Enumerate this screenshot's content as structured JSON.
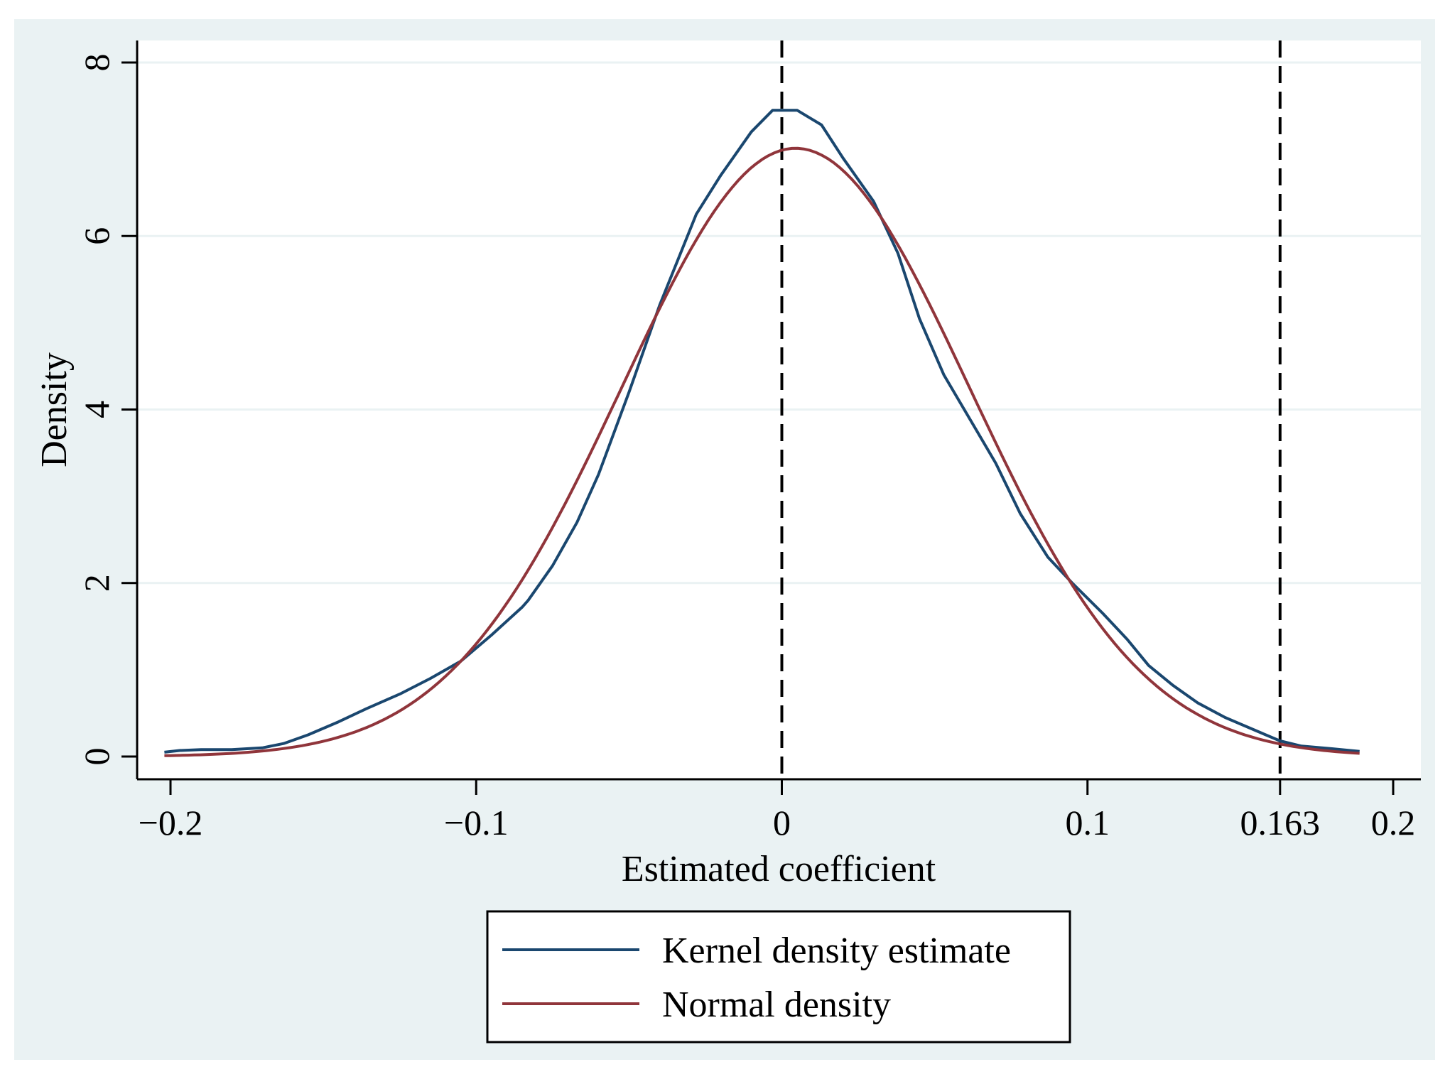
{
  "chart_data": {
    "type": "line",
    "title": "",
    "xlabel": "Estimated coefficient",
    "ylabel": "Density",
    "xlim": [
      -0.2,
      0.2
    ],
    "ylim": [
      0,
      8
    ],
    "grid": true,
    "colors": {
      "outer_background": "#eaf2f3",
      "plot_background": "#ffffff",
      "grid": "#eaf2f3",
      "kernel": "#1a476f",
      "normal": "#90353b",
      "reference": "#000000"
    },
    "x_ticks": [
      {
        "value": -0.2,
        "label": "−0.2"
      },
      {
        "value": -0.1,
        "label": "−0.1"
      },
      {
        "value": 0,
        "label": "0"
      },
      {
        "value": 0.1,
        "label": "0.1"
      },
      {
        "value": 0.163,
        "label": "0.163"
      },
      {
        "value": 0.2,
        "label": "0.2"
      }
    ],
    "y_ticks": [
      {
        "value": 0,
        "label": "0"
      },
      {
        "value": 2,
        "label": "2"
      },
      {
        "value": 4,
        "label": "4"
      },
      {
        "value": 6,
        "label": "6"
      },
      {
        "value": 8,
        "label": "8"
      }
    ],
    "reference_lines": [
      {
        "x": 0,
        "style": "dashed"
      },
      {
        "x": 0.163,
        "style": "dashed"
      }
    ],
    "legend_position": "bottom",
    "series": [
      {
        "name": "Kernel density estimate",
        "key": "kernel",
        "x": [
          -0.202,
          -0.197,
          -0.19,
          -0.18,
          -0.17,
          -0.163,
          -0.155,
          -0.145,
          -0.136,
          -0.125,
          -0.115,
          -0.105,
          -0.095,
          -0.085,
          -0.083,
          -0.075,
          -0.067,
          -0.06,
          -0.05,
          -0.04,
          -0.028,
          -0.02,
          -0.01,
          -0.003,
          0.005,
          0.013,
          0.02,
          0.03,
          0.038,
          0.045,
          0.053,
          0.063,
          0.07,
          0.078,
          0.087,
          0.095,
          0.105,
          0.113,
          0.12,
          0.128,
          0.136,
          0.145,
          0.155,
          0.163,
          0.17,
          0.18,
          0.189
        ],
        "y": [
          0.05,
          0.07,
          0.08,
          0.08,
          0.1,
          0.15,
          0.25,
          0.4,
          0.55,
          0.72,
          0.9,
          1.1,
          1.4,
          1.72,
          1.8,
          2.2,
          2.7,
          3.25,
          4.2,
          5.2,
          6.25,
          6.7,
          7.2,
          7.45,
          7.45,
          7.28,
          6.9,
          6.4,
          5.8,
          5.05,
          4.4,
          3.8,
          3.38,
          2.8,
          2.3,
          2.0,
          1.65,
          1.35,
          1.05,
          0.82,
          0.62,
          0.45,
          0.3,
          0.18,
          0.12,
          0.09,
          0.06
        ]
      },
      {
        "name": "Normal density",
        "key": "normal",
        "mean": 0.0045,
        "sd": 0.0569
      }
    ]
  }
}
